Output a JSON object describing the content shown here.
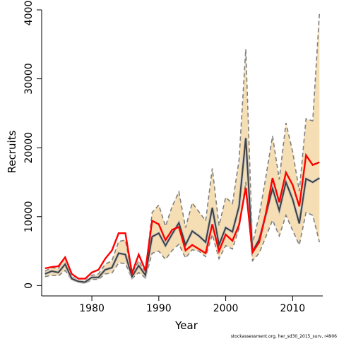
{
  "chart_data": {
    "type": "line",
    "xlabel": "Year",
    "ylabel": "Recruits",
    "xlim": [
      1972.5,
      2014.5
    ],
    "ylim": [
      -1500,
      40000
    ],
    "x_ticks": [
      1980,
      1990,
      2000,
      2010
    ],
    "y_ticks": [
      0,
      10000,
      20000,
      30000,
      40000
    ],
    "grid": false,
    "footnote": "stockassessment.org, her_sd30_2015_surv, r4906",
    "colors": {
      "band_fill": "#f5deb3",
      "bounds_line": "#808080",
      "estimate_line": "#404040",
      "alternative_line": "#ff0000"
    },
    "x": [
      1973,
      1974,
      1975,
      1976,
      1977,
      1978,
      1979,
      1980,
      1981,
      1982,
      1983,
      1984,
      1985,
      1986,
      1987,
      1988,
      1989,
      1990,
      1991,
      1992,
      1993,
      1994,
      1995,
      1996,
      1997,
      1998,
      1999,
      2000,
      2001,
      2002,
      2003,
      2004,
      2005,
      2006,
      2007,
      2008,
      2009,
      2010,
      2011,
      2012,
      2013,
      2014
    ],
    "series": [
      {
        "role": "upper_bound",
        "values": [
          2100,
          2600,
          2500,
          4200,
          1300,
          700,
          700,
          1500,
          1700,
          3100,
          3600,
          6400,
          6600,
          1700,
          3600,
          1900,
          10600,
          11700,
          8600,
          11500,
          13600,
          8400,
          12000,
          10700,
          9400,
          17000,
          8700,
          12800,
          11900,
          18200,
          34300,
          6100,
          10200,
          15800,
          21700,
          15400,
          23600,
          19400,
          13700,
          24200,
          23900,
          39500
        ]
      },
      {
        "role": "lower_bound",
        "values": [
          1300,
          1500,
          1400,
          2200,
          800,
          500,
          300,
          900,
          900,
          1700,
          1800,
          3300,
          3200,
          1000,
          1900,
          1100,
          4700,
          5000,
          3800,
          5100,
          6000,
          4000,
          5200,
          5000,
          4200,
          7400,
          3900,
          5800,
          5300,
          8300,
          15000,
          3600,
          4700,
          7100,
          9500,
          7200,
          10200,
          8000,
          5900,
          10600,
          10200,
          6300
        ]
      },
      {
        "role": "estimate",
        "values": [
          1700,
          2100,
          1900,
          3100,
          1000,
          600,
          500,
          1200,
          1200,
          2300,
          2600,
          4700,
          4500,
          1300,
          2900,
          1500,
          7100,
          7600,
          5800,
          7500,
          9100,
          5900,
          7900,
          7200,
          6300,
          11300,
          5900,
          8400,
          7800,
          11500,
          21400,
          4900,
          6700,
          10300,
          14100,
          10900,
          15000,
          12500,
          9000,
          15500,
          15000,
          15600
        ]
      },
      {
        "role": "alternative",
        "values": [
          2500,
          2700,
          2800,
          4100,
          1700,
          1000,
          1000,
          1900,
          2300,
          3900,
          5100,
          7600,
          7600,
          1800,
          4500,
          2200,
          9400,
          8900,
          6600,
          8100,
          8500,
          5100,
          5900,
          5300,
          4700,
          8900,
          5000,
          7400,
          6500,
          8800,
          14200,
          4800,
          6300,
          10500,
          15600,
          12100,
          16400,
          14600,
          11500,
          18900,
          17500,
          17900
        ]
      }
    ]
  }
}
